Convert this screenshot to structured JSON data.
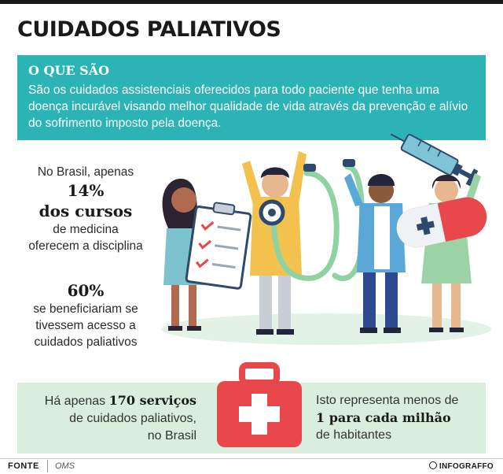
{
  "title": "CUIDADOS PALIATIVOS",
  "what": {
    "heading": "O QUE SÃO",
    "text": "São os cuidados assistenciais oferecidos para todo paciente que tenha uma doença incurável visando melhor qualidade de vida através da prevenção e alívio do sofrimento imposto pela doença."
  },
  "stat1": {
    "line1": "No Brasil, apenas",
    "big1": "14%",
    "big2": "dos cursos",
    "line2": "de medicina",
    "line3": "oferecem a disciplina"
  },
  "stat2": {
    "big": "60%",
    "line1": "se beneficiariam se",
    "line2": "tivessem acesso a",
    "line3": "cuidados paliativos"
  },
  "services": {
    "pre": "Há apenas ",
    "bold": "170 serviços",
    "line2": "de cuidados paliativos,",
    "line3": "no Brasil"
  },
  "ratio": {
    "line1": "Isto representa menos de",
    "bold": "1 para cada milhão",
    "line3": "de habitantes"
  },
  "footer": {
    "source_label": "FONTE",
    "source_value": "OMS",
    "brand": "INFOGRAFFO"
  },
  "icons": {
    "syringe": "syringe-icon",
    "stethoscope": "stethoscope-icon",
    "clipboard": "clipboard-icon",
    "pill": "pill-icon",
    "first_aid_kit": "first-aid-kit-icon"
  },
  "colors": {
    "teal": "#2bb3b6",
    "mint": "#d9eedd",
    "kit_red": "#e8474b",
    "pill_red": "#e8474b"
  }
}
